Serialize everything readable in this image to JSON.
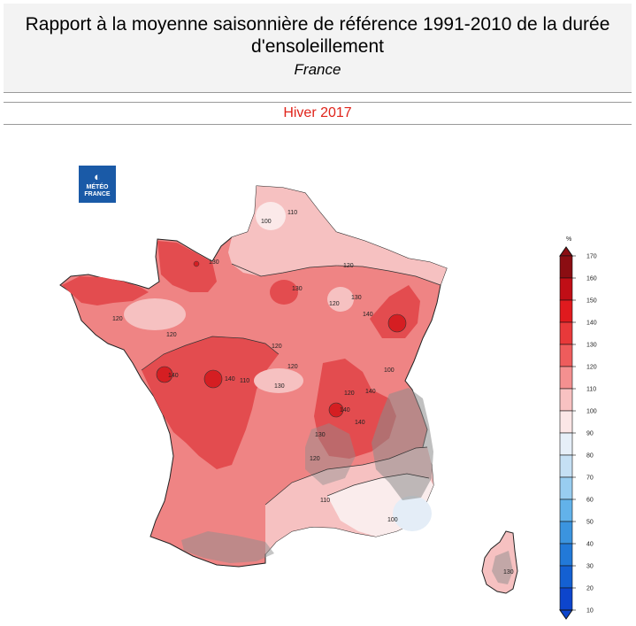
{
  "header": {
    "title_line1": "Rapport à la moyenne saisonnière de référence 1991-2010 de la durée",
    "title_line2": "d'ensoleillement",
    "region": "France"
  },
  "season": "Hiver 2017",
  "logo": {
    "line1": "MÉTÉO",
    "line2": "FRANCE",
    "icon": "meteo-france-logo-icon"
  },
  "legend": {
    "unit": "%",
    "ticks": [
      "170",
      "160",
      "150",
      "140",
      "130",
      "120",
      "110",
      "100",
      "90",
      "80",
      "70",
      "60",
      "50",
      "40",
      "30",
      "20",
      "10"
    ],
    "colors": [
      "#8b0d12",
      "#c00e16",
      "#e01a1e",
      "#e8393a",
      "#ee5c5c",
      "#f49090",
      "#f8c2c2",
      "#fbe6e6",
      "#e6eff8",
      "#c5e0f4",
      "#98cdf0",
      "#62b2ea",
      "#3b94df",
      "#2279d8",
      "#1460d2",
      "#0d45cc"
    ]
  },
  "contour_labels": [
    "110",
    "100",
    "120",
    "130",
    "120",
    "130",
    "120",
    "130",
    "140",
    "120",
    "140",
    "120",
    "140",
    "130",
    "110",
    "100",
    "120",
    "140",
    "140",
    "120",
    "140",
    "130",
    "120",
    "110",
    "100",
    "130"
  ],
  "colors": {
    "season": "#e0241b",
    "logo": "#1a5aa7"
  }
}
